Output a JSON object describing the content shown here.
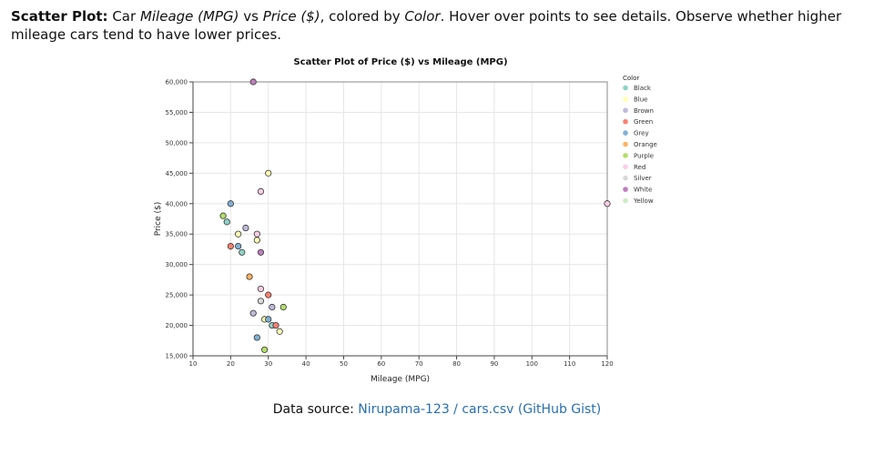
{
  "intro": {
    "bold_label": "Scatter Plot:",
    "t1": " Car ",
    "x_var": "Mileage (MPG)",
    "t2": " vs ",
    "y_var": "Price ($)",
    "t3": ", colored by ",
    "color_var": "Color",
    "t4": ". Hover over points to see details. Observe whether higher mileage cars tend to have lower prices."
  },
  "source": {
    "label": "Data source: ",
    "link_text": "Nirupama-123 / cars.csv (GitHub Gist)"
  },
  "chart_data": {
    "type": "scatter",
    "title": "Scatter Plot of Price ($) vs Mileage (MPG)",
    "xlabel": "Mileage (MPG)",
    "ylabel": "Price ($)",
    "xlim": [
      10,
      120
    ],
    "ylim": [
      15000,
      60000
    ],
    "xticks": [
      "10",
      "20",
      "30",
      "40",
      "50",
      "60",
      "70",
      "80",
      "90",
      "100",
      "110",
      "120"
    ],
    "yticks": [
      "15,000",
      "20,000",
      "25,000",
      "30,000",
      "35,000",
      "40,000",
      "45,000",
      "50,000",
      "55,000",
      "60,000"
    ],
    "grid": true,
    "legend_position": "right",
    "legend_title": "Color",
    "series": [
      {
        "name": "Black",
        "color": "#8dd3c7",
        "points": [
          [
            19,
            37000
          ],
          [
            23,
            32000
          ],
          [
            31,
            20000
          ]
        ]
      },
      {
        "name": "Blue",
        "color": "#ffffb3",
        "points": [
          [
            30,
            45000
          ],
          [
            22,
            35000
          ],
          [
            27,
            34000
          ],
          [
            29,
            21000
          ],
          [
            33,
            19000
          ]
        ]
      },
      {
        "name": "Brown",
        "color": "#bebada",
        "points": [
          [
            24,
            36000
          ],
          [
            26,
            22000
          ],
          [
            31,
            23000
          ]
        ]
      },
      {
        "name": "Green",
        "color": "#fb8072",
        "points": [
          [
            20,
            33000
          ],
          [
            30,
            25000
          ],
          [
            32,
            20000
          ]
        ]
      },
      {
        "name": "Grey",
        "color": "#80b1d3",
        "points": [
          [
            20,
            40000
          ],
          [
            22,
            33000
          ],
          [
            30,
            21000
          ],
          [
            27,
            18000
          ]
        ]
      },
      {
        "name": "Orange",
        "color": "#fdb462",
        "points": [
          [
            25,
            28000
          ]
        ]
      },
      {
        "name": "Purple",
        "color": "#b3de69",
        "points": [
          [
            18,
            38000
          ],
          [
            34,
            23000
          ],
          [
            29,
            16000
          ]
        ]
      },
      {
        "name": "Red",
        "color": "#fccde5",
        "points": [
          [
            28,
            42000
          ],
          [
            27,
            35000
          ],
          [
            28,
            26000
          ],
          [
            120,
            40000
          ]
        ]
      },
      {
        "name": "Silver",
        "color": "#d9d9d9",
        "points": [
          [
            28,
            24000
          ]
        ]
      },
      {
        "name": "White",
        "color": "#bc80bd",
        "points": [
          [
            26,
            60000
          ],
          [
            28,
            32000
          ]
        ]
      },
      {
        "name": "Yellow",
        "color": "#ccebc5",
        "points": []
      }
    ]
  }
}
